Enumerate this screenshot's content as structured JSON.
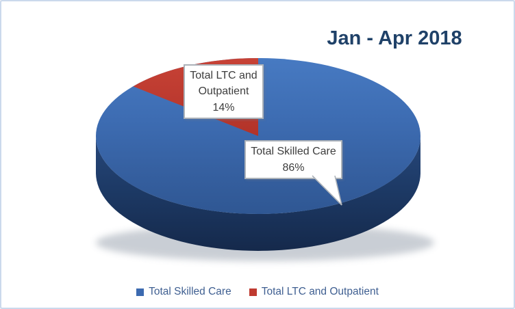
{
  "window": {
    "background": "#ffffff",
    "border_color": "#cbd9ec"
  },
  "title": {
    "text": "Jan - Apr 2018",
    "color": "#1f4168"
  },
  "chart_data": {
    "type": "pie",
    "style": "3d",
    "title": "Jan - Apr 2018",
    "categories": [
      "Total Skilled Care",
      "Total LTC and Outpatient"
    ],
    "values": [
      86,
      14
    ],
    "unit": "%",
    "colors": [
      "#3c6ab0",
      "#bf3a30"
    ],
    "start_angle_deg": 0,
    "direction": "clockwise-from-12-oclock",
    "legend_position": "bottom",
    "data_labels": [
      {
        "label": "Total Skilled Care",
        "value": "86%"
      },
      {
        "label": "Total LTC and Outpatient",
        "value": "14%"
      }
    ]
  },
  "callouts": [
    {
      "label": "Total LTC and Outpatient",
      "value": "14%"
    },
    {
      "label": "Total Skilled Care",
      "value": "86%"
    }
  ],
  "legend": {
    "items": [
      {
        "label": "Total Skilled Care",
        "color": "#3c6ab0"
      },
      {
        "label": "Total LTC and Outpatient",
        "color": "#bf3a30"
      }
    ]
  }
}
